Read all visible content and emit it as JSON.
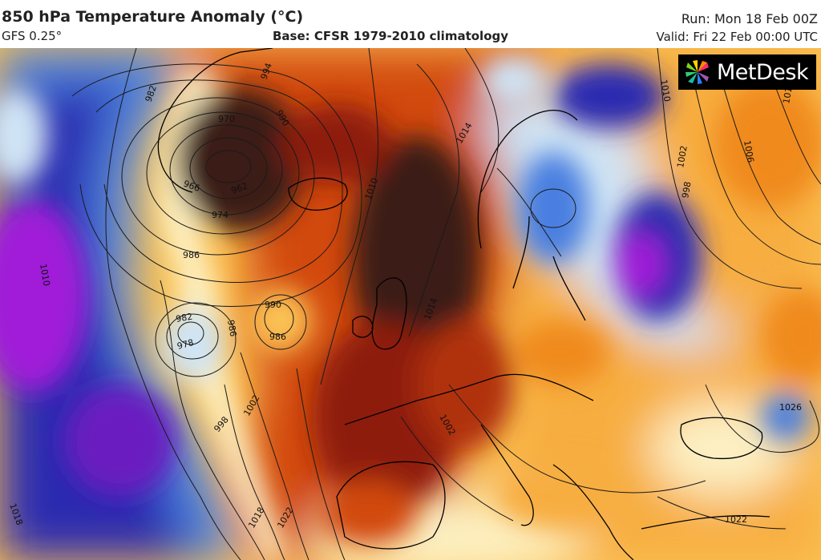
{
  "header": {
    "title": "850 hPa Temperature Anomaly (°C)",
    "model": "GFS 0.25°",
    "base": "Base: CFSR 1979-2010 climatology",
    "run": "Run: Mon 18 Feb 00Z",
    "valid": "Valid: Fri 22 Feb 00:00 UTC"
  },
  "logo": {
    "text": "MetDesk",
    "icon": "metdesk-pinwheel-icon"
  },
  "colors": {
    "very_warm": "#3a1a14",
    "warm_dark": "#8e1f0c",
    "warm": "#d24a10",
    "mild_warm": "#f08a1e",
    "slightly_warm": "#fbc254",
    "neutral": "#fdf1c4",
    "slightly_cold": "#cfe4f5",
    "cold": "#4a7fe0",
    "very_cold": "#2a2bb0",
    "extreme_cold": "#a01fd8",
    "coast": "#000000",
    "isobar": "#1a1a1a"
  },
  "isobar_labels": [
    "1014",
    "994",
    "990",
    "970",
    "982",
    "966",
    "962",
    "974",
    "986",
    "1010",
    "982",
    "978",
    "986",
    "990",
    "986",
    "998",
    "1002",
    "1010",
    "1018",
    "1022",
    "1014",
    "1010",
    "1002",
    "998",
    "1006",
    "1018",
    "1026",
    "1022",
    "1018",
    "1002"
  ]
}
